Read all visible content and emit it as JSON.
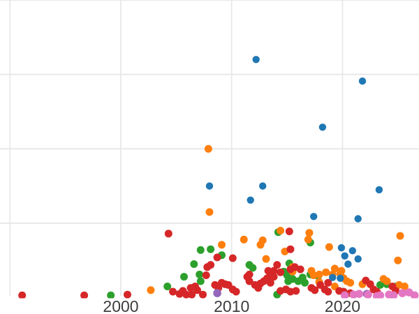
{
  "page": {
    "background": "#ffffff"
  },
  "chart_data": {
    "type": "scatter",
    "title": "",
    "xlabel": "",
    "ylabel": "",
    "grid": true,
    "legend_position": "none",
    "axes": {
      "xlim": [
        1989.1,
        2026.9
      ],
      "ylim": [
        0,
        4
      ],
      "xticks": [
        {
          "value": 1990,
          "label": ""
        },
        {
          "value": 2000,
          "label": "2000"
        },
        {
          "value": 2010,
          "label": "2010"
        },
        {
          "value": 2020,
          "label": "2020"
        }
      ],
      "yticks": [
        {
          "value": 1,
          "label": ""
        },
        {
          "value": 2,
          "label": ""
        },
        {
          "value": 3,
          "label": ""
        },
        {
          "value": 4,
          "label": ""
        }
      ],
      "gridline_color": "#e8e8e8",
      "tick_label_color": "#3d3d3d"
    },
    "series": [
      {
        "name": "series-green",
        "color": "#2ca02c",
        "marker_radius": 5.5,
        "points": [
          [
            1999.1,
            0.03
          ],
          [
            2004.2,
            0.15
          ],
          [
            2005.7,
            0.28
          ],
          [
            2007.2,
            0.64
          ],
          [
            2008.1,
            0.65
          ],
          [
            2009.1,
            0.57
          ],
          [
            2006.6,
            0.45
          ],
          [
            2007.1,
            0.31
          ],
          [
            2007.2,
            0.22
          ],
          [
            2011.6,
            0.44
          ],
          [
            2011.9,
            0.4
          ],
          [
            2014.2,
            0.88
          ],
          [
            2014.7,
            0.35
          ],
          [
            2015.0,
            0.3
          ],
          [
            2015.1,
            0.22
          ],
          [
            2015.5,
            0.25
          ],
          [
            2016.0,
            0.22
          ],
          [
            2016.4,
            0.27
          ],
          [
            2016.6,
            0.2
          ],
          [
            2017.1,
            0.31
          ],
          [
            2017.8,
            0.29
          ],
          [
            2017.1,
            0.74
          ],
          [
            2014.1,
            0.04
          ],
          [
            2015.2,
            0.46
          ],
          [
            2023.4,
            0.17
          ],
          [
            2024.0,
            0.18
          ],
          [
            2024.8,
            0.15
          ]
        ]
      },
      {
        "name": "series-orange",
        "color": "#ff7f0e",
        "marker_radius": 5.5,
        "points": [
          [
            2007.9,
            2.0
          ],
          [
            2008.0,
            1.15
          ],
          [
            2002.7,
            0.1
          ],
          [
            2009.1,
            0.71
          ],
          [
            2011.1,
            0.78
          ],
          [
            2012.8,
            0.77
          ],
          [
            2012.6,
            0.71
          ],
          [
            2013.1,
            0.52
          ],
          [
            2014.4,
            0.9
          ],
          [
            2014.8,
            0.62
          ],
          [
            2017.0,
            0.87
          ],
          [
            2016.9,
            0.78
          ],
          [
            2018.8,
            0.68
          ],
          [
            2025.2,
            0.83
          ],
          [
            2025.0,
            0.5
          ],
          [
            2015.5,
            0.41
          ],
          [
            2015.5,
            0.35
          ],
          [
            2017.2,
            0.36
          ],
          [
            2017.4,
            0.3
          ],
          [
            2017.9,
            0.31
          ],
          [
            2018.5,
            0.34
          ],
          [
            2019.3,
            0.39
          ],
          [
            2019.8,
            0.32
          ],
          [
            2019.1,
            0.31
          ],
          [
            2020.1,
            0.26
          ],
          [
            2017.9,
            0.21
          ],
          [
            2019.3,
            0.15
          ],
          [
            2019.9,
            0.36
          ],
          [
            2020.4,
            0.22
          ],
          [
            2020.7,
            0.2
          ],
          [
            2021.8,
            0.18
          ],
          [
            2023.7,
            0.25
          ],
          [
            2024.0,
            0.22
          ],
          [
            2025.1,
            0.17
          ],
          [
            2025.6,
            0.15
          ]
        ]
      },
      {
        "name": "series-red",
        "color": "#d62728",
        "marker_radius": 5.5,
        "points": [
          [
            1991.1,
            0.03
          ],
          [
            1996.7,
            0.03
          ],
          [
            2000.6,
            0.04
          ],
          [
            2004.7,
            0.08
          ],
          [
            2005.3,
            0.05
          ],
          [
            2004.3,
            0.86
          ],
          [
            2005.6,
            0.09
          ],
          [
            2005.9,
            0.04
          ],
          [
            2006.3,
            0.13
          ],
          [
            2006.7,
            0.15
          ],
          [
            2006.9,
            0.1
          ],
          [
            2006.4,
            0.04
          ],
          [
            2007.4,
            0.04
          ],
          [
            2007.7,
            0.3
          ],
          [
            2007.8,
            0.41
          ],
          [
            2008.1,
            0.44
          ],
          [
            2008.5,
            0.17
          ],
          [
            2008.7,
            0.54
          ],
          [
            2008.8,
            0.13
          ],
          [
            2009.1,
            0.2
          ],
          [
            2009.4,
            0.18
          ],
          [
            2009.7,
            0.17
          ],
          [
            2010.1,
            0.53
          ],
          [
            2010.1,
            0.11
          ],
          [
            2010.4,
            0.08
          ],
          [
            2011.4,
            0.28
          ],
          [
            2011.6,
            0.31
          ],
          [
            2011.6,
            0.22
          ],
          [
            2012.1,
            0.17
          ],
          [
            2012.4,
            0.13
          ],
          [
            2012.6,
            0.19
          ],
          [
            2012.9,
            0.22
          ],
          [
            2013.2,
            0.26
          ],
          [
            2013.3,
            0.36
          ],
          [
            2013.5,
            0.3
          ],
          [
            2013.5,
            0.2
          ],
          [
            2013.8,
            0.36
          ],
          [
            2013.8,
            0.28
          ],
          [
            2014.1,
            0.44
          ],
          [
            2014.4,
            0.34
          ],
          [
            2014.4,
            0.09
          ],
          [
            2014.9,
            0.11
          ],
          [
            2015.3,
            0.65
          ],
          [
            2015.2,
            0.89
          ],
          [
            2015.3,
            0.38
          ],
          [
            2015.3,
            0.08
          ],
          [
            2015.8,
            0.09
          ],
          [
            2015.7,
            0.41
          ],
          [
            2016.2,
            0.38
          ],
          [
            2017.2,
            0.13
          ],
          [
            2017.5,
            0.1
          ],
          [
            2018.0,
            0.17
          ],
          [
            2018.4,
            0.11
          ],
          [
            2018.7,
            0.2
          ],
          [
            2018.7,
            0.08
          ],
          [
            2019.7,
            0.09
          ],
          [
            2020.1,
            0.08
          ],
          [
            2020.7,
            0.06
          ],
          [
            2022.1,
            0.23
          ],
          [
            2022.5,
            0.18
          ],
          [
            2022.8,
            0.11
          ],
          [
            2023.1,
            0.08
          ],
          [
            2024.5,
            0.15
          ],
          [
            2024.8,
            0.09
          ]
        ]
      },
      {
        "name": "series-blue",
        "color": "#1f77b4",
        "marker_radius": 5.2,
        "points": [
          [
            2012.2,
            3.2
          ],
          [
            2021.8,
            2.91
          ],
          [
            2018.2,
            2.29
          ],
          [
            2023.3,
            1.45
          ],
          [
            2008.0,
            1.5
          ],
          [
            2012.8,
            1.5
          ],
          [
            2011.7,
            1.31
          ],
          [
            2017.4,
            1.09
          ],
          [
            2021.4,
            1.06
          ],
          [
            2019.9,
            0.67
          ],
          [
            2020.9,
            0.63
          ],
          [
            2020.2,
            0.56
          ],
          [
            2021.4,
            0.52
          ],
          [
            2020.5,
            0.45
          ],
          [
            2019.1,
            0.27
          ],
          [
            2019.8,
            0.26
          ]
        ]
      },
      {
        "name": "series-purple",
        "color": "#9467bd",
        "marker_radius": 5.8,
        "points": [
          [
            2008.7,
            0.06
          ],
          [
            2022.2,
            0.05
          ]
        ]
      },
      {
        "name": "series-brown",
        "color": "#8c564b",
        "marker_radius": 5.0,
        "points": [
          [
            2024.5,
            0.02
          ]
        ]
      },
      {
        "name": "series-pink",
        "color": "#e377c2",
        "marker_radius": 5.8,
        "points": [
          [
            2020.2,
            0.03
          ],
          [
            2021.0,
            0.04
          ],
          [
            2021.5,
            0.05
          ],
          [
            2022.3,
            0.04
          ],
          [
            2023.1,
            0.02
          ],
          [
            2023.4,
            0.03
          ],
          [
            2024.2,
            0.04
          ],
          [
            2024.6,
            0.03
          ],
          [
            2025.4,
            0.06
          ],
          [
            2026.0,
            0.07
          ],
          [
            2026.5,
            0.03
          ]
        ]
      }
    ]
  }
}
